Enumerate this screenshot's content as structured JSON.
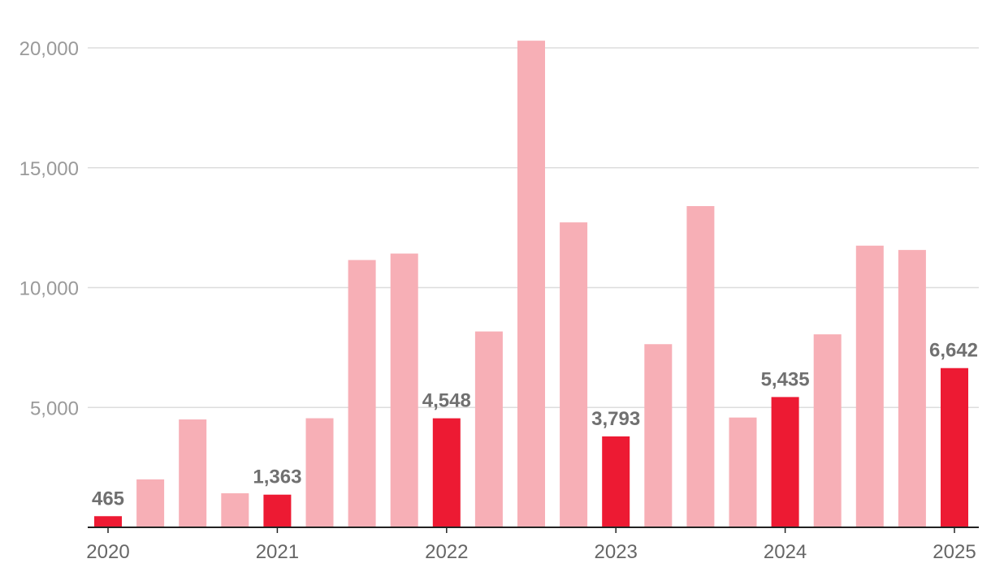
{
  "chart_data": {
    "type": "bar",
    "title": "",
    "xlabel": "",
    "ylabel": "",
    "ylim": [
      0,
      20000
    ],
    "grid": true,
    "legend": "none",
    "colors": {
      "highlight": "#ED1A33",
      "regular": "#F7AFB6",
      "grid": "#dddddd",
      "axis": "#222222"
    },
    "yticks": [
      {
        "value": 5000,
        "label": "5,000"
      },
      {
        "value": 10000,
        "label": "10,000"
      },
      {
        "value": 15000,
        "label": "15,000"
      },
      {
        "value": 20000,
        "label": "20,000"
      }
    ],
    "xticks": [
      {
        "index": 0,
        "label": "2020"
      },
      {
        "index": 4,
        "label": "2021"
      },
      {
        "index": 8,
        "label": "2022"
      },
      {
        "index": 12,
        "label": "2023"
      },
      {
        "index": 16,
        "label": "2024"
      },
      {
        "index": 20,
        "label": "2025"
      }
    ],
    "bars": [
      {
        "value": 465,
        "highlight": true,
        "label": "465"
      },
      {
        "value": 2000,
        "highlight": false
      },
      {
        "value": 4500,
        "highlight": false
      },
      {
        "value": 1420,
        "highlight": false
      },
      {
        "value": 1363,
        "highlight": true,
        "label": "1,363"
      },
      {
        "value": 4550,
        "highlight": false
      },
      {
        "value": 11150,
        "highlight": false
      },
      {
        "value": 11420,
        "highlight": false
      },
      {
        "value": 4548,
        "highlight": true,
        "label": "4,548"
      },
      {
        "value": 8170,
        "highlight": false
      },
      {
        "value": 20300,
        "highlight": false
      },
      {
        "value": 12720,
        "highlight": false
      },
      {
        "value": 3793,
        "highlight": true,
        "label": "3,793"
      },
      {
        "value": 7640,
        "highlight": false
      },
      {
        "value": 13400,
        "highlight": false
      },
      {
        "value": 4580,
        "highlight": false
      },
      {
        "value": 5435,
        "highlight": true,
        "label": "5,435"
      },
      {
        "value": 8050,
        "highlight": false
      },
      {
        "value": 11750,
        "highlight": false
      },
      {
        "value": 11570,
        "highlight": false
      },
      {
        "value": 6642,
        "highlight": true,
        "label": "6,642"
      }
    ]
  }
}
